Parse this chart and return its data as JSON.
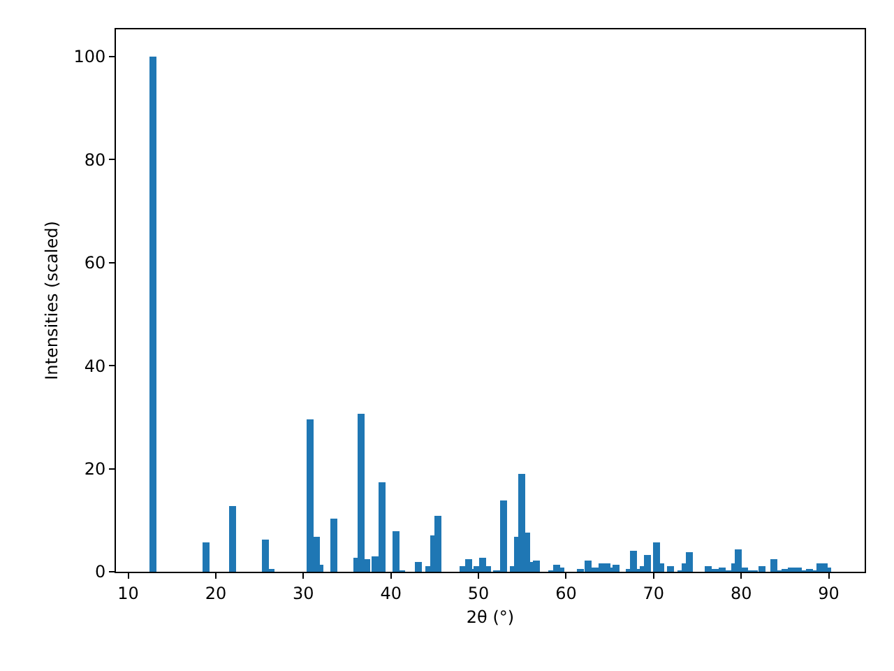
{
  "chart_data": {
    "type": "bar",
    "xlabel": "2θ (°)",
    "ylabel": "Intensities (scaled)",
    "x": [
      12.8,
      18.9,
      21.9,
      25.7,
      26.3,
      30.8,
      31.5,
      31.9,
      33.5,
      36.1,
      36.6,
      37.2,
      38.2,
      39.0,
      40.6,
      41.2,
      43.1,
      44.3,
      44.9,
      45.4,
      48.2,
      48.9,
      49.4,
      49.8,
      50.5,
      51.0,
      52.1,
      52.9,
      54.0,
      54.5,
      54.9,
      55.5,
      56.1,
      56.6,
      58.4,
      58.9,
      59.4,
      61.6,
      62.5,
      63.3,
      64.1,
      64.7,
      65.1,
      65.7,
      67.2,
      67.7,
      68.3,
      68.8,
      69.3,
      70.3,
      70.8,
      71.9,
      73.1,
      73.6,
      74.1,
      76.2,
      77.0,
      77.8,
      78.6,
      79.3,
      79.7,
      80.4,
      80.9,
      81.5,
      82.4,
      83.7,
      84.4,
      85.0,
      85.7,
      86.5,
      87.3,
      87.8,
      88.4,
      89.0,
      89.5,
      89.9
    ],
    "values": [
      100,
      5.7,
      12.8,
      6.2,
      0.5,
      29.6,
      6.8,
      1.4,
      10.3,
      2.7,
      30.7,
      2.4,
      3.0,
      17.4,
      7.9,
      0.3,
      1.9,
      1.1,
      7.1,
      10.9,
      1.1,
      2.4,
      0.5,
      1.1,
      2.7,
      1.1,
      0.3,
      13.8,
      1.1,
      6.8,
      19.0,
      7.6,
      1.9,
      2.2,
      0.3,
      1.4,
      0.8,
      0.5,
      2.2,
      0.8,
      1.6,
      1.6,
      0.8,
      1.4,
      0.5,
      4.1,
      0.5,
      1.1,
      3.2,
      5.7,
      1.6,
      1.1,
      0.3,
      1.6,
      3.8,
      1.1,
      0.5,
      0.8,
      0.3,
      1.6,
      4.3,
      0.8,
      0.3,
      0.3,
      1.1,
      2.4,
      0.3,
      0.5,
      0.8,
      0.8,
      0.3,
      0.5,
      0.3,
      1.6,
      1.6,
      0.8
    ],
    "color": "#1f77b4",
    "xlim": [
      8.6,
      94.1
    ],
    "xticks": [
      10,
      20,
      30,
      40,
      50,
      60,
      70,
      80,
      90
    ],
    "ylim": [
      0,
      105.3
    ],
    "yticks": [
      0,
      20,
      40,
      60,
      80,
      100
    ],
    "grid": false,
    "legend": false
  }
}
